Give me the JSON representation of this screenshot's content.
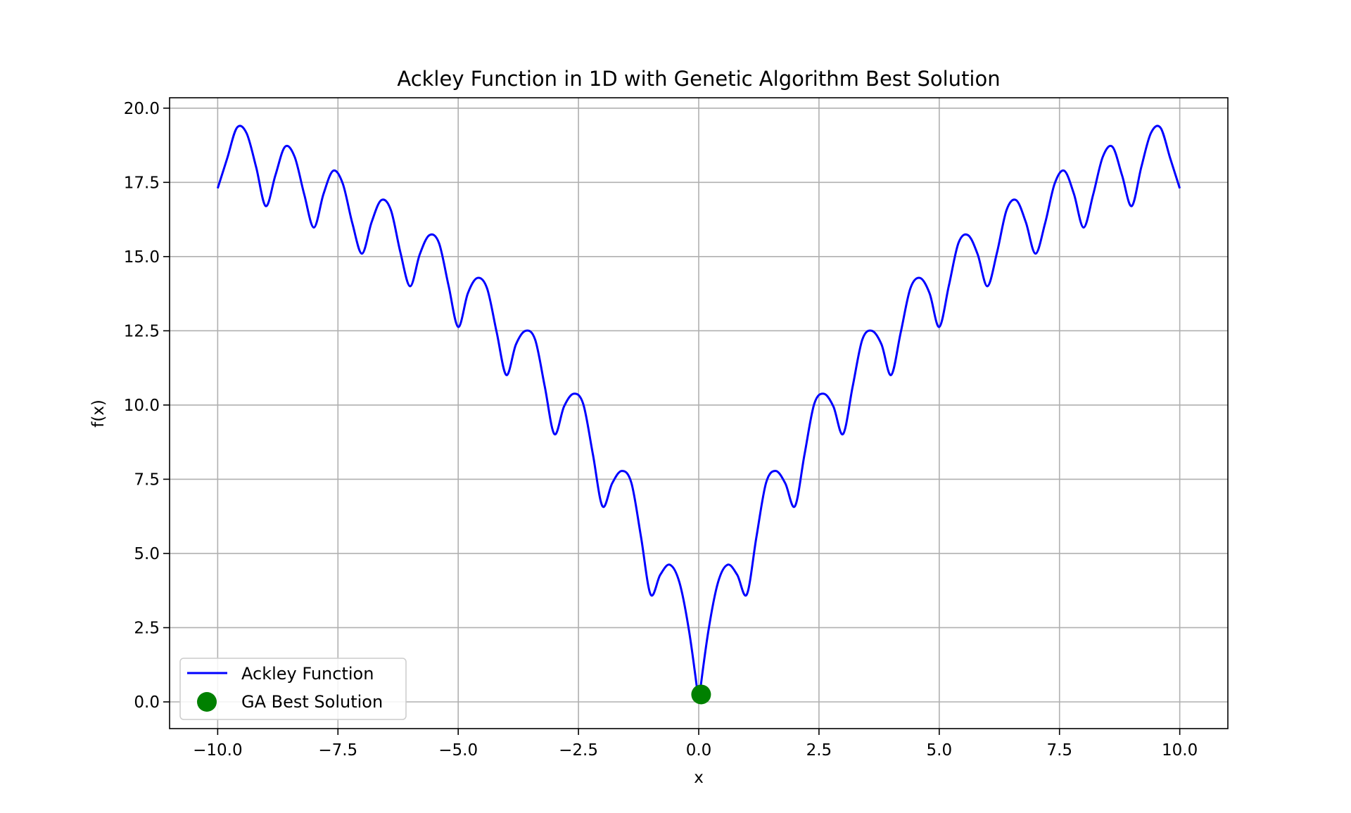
{
  "chart_data": {
    "type": "line",
    "title": "Ackley Function in 1D with Genetic Algorithm Best Solution",
    "xlabel": "x",
    "ylabel": "f(x)",
    "xlim": [
      -11.0,
      11.0
    ],
    "ylim": [
      -0.9,
      20.35
    ],
    "grid": true,
    "legend_position": "lower-left",
    "x_ticks": [
      -10.0,
      -7.5,
      -5.0,
      -2.5,
      0.0,
      2.5,
      5.0,
      7.5,
      10.0
    ],
    "x_tick_labels": [
      "−10.0",
      "−7.5",
      "−5.0",
      "−2.5",
      "0.0",
      "2.5",
      "5.0",
      "7.5",
      "10.0"
    ],
    "y_ticks": [
      0.0,
      2.5,
      5.0,
      7.5,
      10.0,
      12.5,
      15.0,
      17.5,
      20.0
    ],
    "y_tick_labels": [
      "0.0",
      "2.5",
      "5.0",
      "7.5",
      "10.0",
      "12.5",
      "15.0",
      "17.5",
      "20.0"
    ],
    "series": [
      {
        "name": "Ackley Function",
        "kind": "line",
        "color": "#0000ff",
        "x": [
          -10.0,
          -9.8,
          -9.6,
          -9.4,
          -9.2,
          -9.0,
          -8.8,
          -8.6,
          -8.4,
          -8.2,
          -8.0,
          -7.8,
          -7.6,
          -7.4,
          -7.2,
          -7.0,
          -6.8,
          -6.6,
          -6.4,
          -6.2,
          -6.0,
          -5.8,
          -5.6,
          -5.4,
          -5.2,
          -5.0,
          -4.8,
          -4.6,
          -4.4,
          -4.2,
          -4.0,
          -3.8,
          -3.6,
          -3.4,
          -3.2,
          -3.0,
          -2.8,
          -2.6,
          -2.4,
          -2.2,
          -2.0,
          -1.8,
          -1.6,
          -1.4,
          -1.2,
          -1.0,
          -0.8,
          -0.6,
          -0.4,
          -0.2,
          0.0,
          0.2,
          0.4,
          0.6,
          0.8,
          1.0,
          1.2,
          1.4,
          1.6,
          1.8,
          2.0,
          2.2,
          2.4,
          2.6,
          2.8,
          3.0,
          3.2,
          3.4,
          3.6,
          3.8,
          4.0,
          4.2,
          4.4,
          4.6,
          4.8,
          5.0,
          5.2,
          5.4,
          5.6,
          5.8,
          6.0,
          6.2,
          6.4,
          6.6,
          6.8,
          7.0,
          7.2,
          7.4,
          7.6,
          7.8,
          8.0,
          8.2,
          8.4,
          8.6,
          8.8,
          9.0,
          9.2,
          9.4,
          9.6,
          9.8,
          10.0
        ],
        "y": [
          17.3,
          18.32,
          19.34,
          19.16,
          18.01,
          16.7,
          17.74,
          18.7,
          18.36,
          17.09,
          15.98,
          17.11,
          17.89,
          17.46,
          16.12,
          15.1,
          16.16,
          16.9,
          16.57,
          15.13,
          14.0,
          15.07,
          15.72,
          15.46,
          14.02,
          12.63,
          13.76,
          14.28,
          13.93,
          12.45,
          11.01,
          12.04,
          12.5,
          12.2,
          10.62,
          9.02,
          9.95,
          10.38,
          10.03,
          8.34,
          6.59,
          7.36,
          7.78,
          7.38,
          5.56,
          3.62,
          4.28,
          4.62,
          4.02,
          2.38,
          0.0,
          2.38,
          4.02,
          4.62,
          4.28,
          3.62,
          5.56,
          7.38,
          7.78,
          7.36,
          6.59,
          8.34,
          10.03,
          10.38,
          9.95,
          9.02,
          10.62,
          12.2,
          12.5,
          12.04,
          11.01,
          12.45,
          13.93,
          14.28,
          13.76,
          12.63,
          14.02,
          15.46,
          15.72,
          15.07,
          14.0,
          15.13,
          16.57,
          16.9,
          16.16,
          15.1,
          16.12,
          17.46,
          17.89,
          17.11,
          15.98,
          17.09,
          18.36,
          18.7,
          17.74,
          16.7,
          18.01,
          19.16,
          19.34,
          18.32,
          17.3
        ]
      },
      {
        "name": "GA Best Solution",
        "kind": "scatter",
        "color": "#008000",
        "x": [
          0.05
        ],
        "y": [
          0.25
        ]
      }
    ]
  }
}
